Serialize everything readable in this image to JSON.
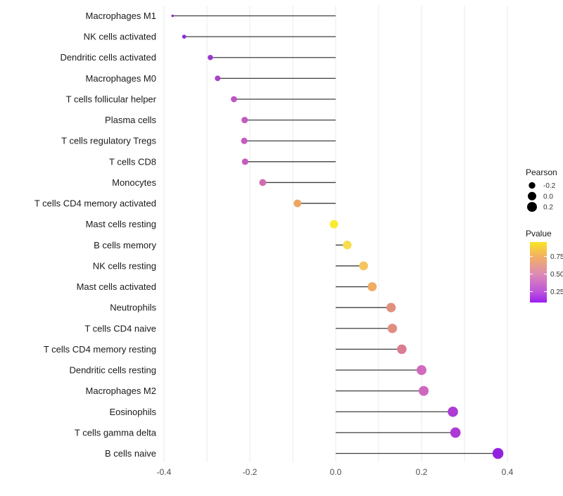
{
  "figure": {
    "background": "#ffffff",
    "gridline_color": "#ebebeb",
    "stem_color": "#3f3f3f",
    "axis_text_color": "#4d4d4d",
    "category_text_color": "#1a1a1a"
  },
  "chart_data": {
    "type": "scatter",
    "subtype": "lollipop-horizontal",
    "title": "",
    "xlabel": "",
    "ylabel": "",
    "xlim": [
      -0.45,
      0.47
    ],
    "x_ticks": [
      "-0.4",
      "-0.2",
      "0.0",
      "0.2",
      "0.4"
    ],
    "x_tick_values": [
      -0.4,
      -0.2,
      0.0,
      0.2,
      0.4
    ],
    "grid": "vertical-minor-and-major-every-0.1",
    "baseline": 0.0,
    "points": [
      {
        "label": "Macrophages M1",
        "pearson": -0.38,
        "color": "#8227df"
      },
      {
        "label": "NK cells activated",
        "pearson": -0.353,
        "color": "#8c2cd8"
      },
      {
        "label": "Dendritic cells activated",
        "pearson": -0.292,
        "color": "#9c38ce"
      },
      {
        "label": "Macrophages M0",
        "pearson": -0.275,
        "color": "#a845cb"
      },
      {
        "label": "T cells follicular helper",
        "pearson": -0.237,
        "color": "#bc55c5"
      },
      {
        "label": "Plasma cells",
        "pearson": -0.212,
        "color": "#c45cc0"
      },
      {
        "label": "T cells regulatory  Tregs",
        "pearson": -0.213,
        "color": "#c45cc0"
      },
      {
        "label": "T cells CD8",
        "pearson": -0.211,
        "color": "#c55dbf"
      },
      {
        "label": "Monocytes",
        "pearson": -0.17,
        "color": "#cf6bb2"
      },
      {
        "label": "T cells CD4 memory activated",
        "pearson": -0.089,
        "color": "#eda763"
      },
      {
        "label": "Mast cells resting",
        "pearson": -0.004,
        "color": "#f8eb31"
      },
      {
        "label": "B cells memory",
        "pearson": 0.027,
        "color": "#f6de4d"
      },
      {
        "label": "NK cells resting",
        "pearson": 0.065,
        "color": "#f3c55c"
      },
      {
        "label": "Mast cells activated",
        "pearson": 0.085,
        "color": "#f0ac61"
      },
      {
        "label": "Neutrophils",
        "pearson": 0.129,
        "color": "#e28f7e"
      },
      {
        "label": "T cells CD4 naive",
        "pearson": 0.132,
        "color": "#e18d80"
      },
      {
        "label": "T cells CD4 memory resting",
        "pearson": 0.154,
        "color": "#da7d92"
      },
      {
        "label": "Dendritic cells resting",
        "pearson": 0.2,
        "color": "#d169be"
      },
      {
        "label": "Macrophages M2",
        "pearson": 0.205,
        "color": "#d067bf"
      },
      {
        "label": "Eosinophils",
        "pearson": 0.273,
        "color": "#ae3bd3"
      },
      {
        "label": "T cells gamma delta",
        "pearson": 0.279,
        "color": "#ad3ad4"
      },
      {
        "label": "B cells naive",
        "pearson": 0.378,
        "color": "#9421e1"
      }
    ],
    "legend_size": {
      "title": "Pearson",
      "breaks": [
        "-0.2",
        "0.0",
        "0.2"
      ],
      "break_values": [
        -0.2,
        0.0,
        0.2
      ],
      "dot_color": "#000000"
    },
    "legend_color": {
      "title": "Pvalue",
      "breaks": [
        "0.75",
        "0.50",
        "0.25"
      ],
      "break_fractions": [
        0.24,
        0.53,
        0.82
      ],
      "gradient_stops": [
        {
          "offset": "0%",
          "color": "#f8e525"
        },
        {
          "offset": "24%",
          "color": "#f3af63"
        },
        {
          "offset": "53%",
          "color": "#dd8bb4"
        },
        {
          "offset": "82%",
          "color": "#be55dc"
        },
        {
          "offset": "100%",
          "color": "#9b1fee"
        }
      ]
    }
  }
}
